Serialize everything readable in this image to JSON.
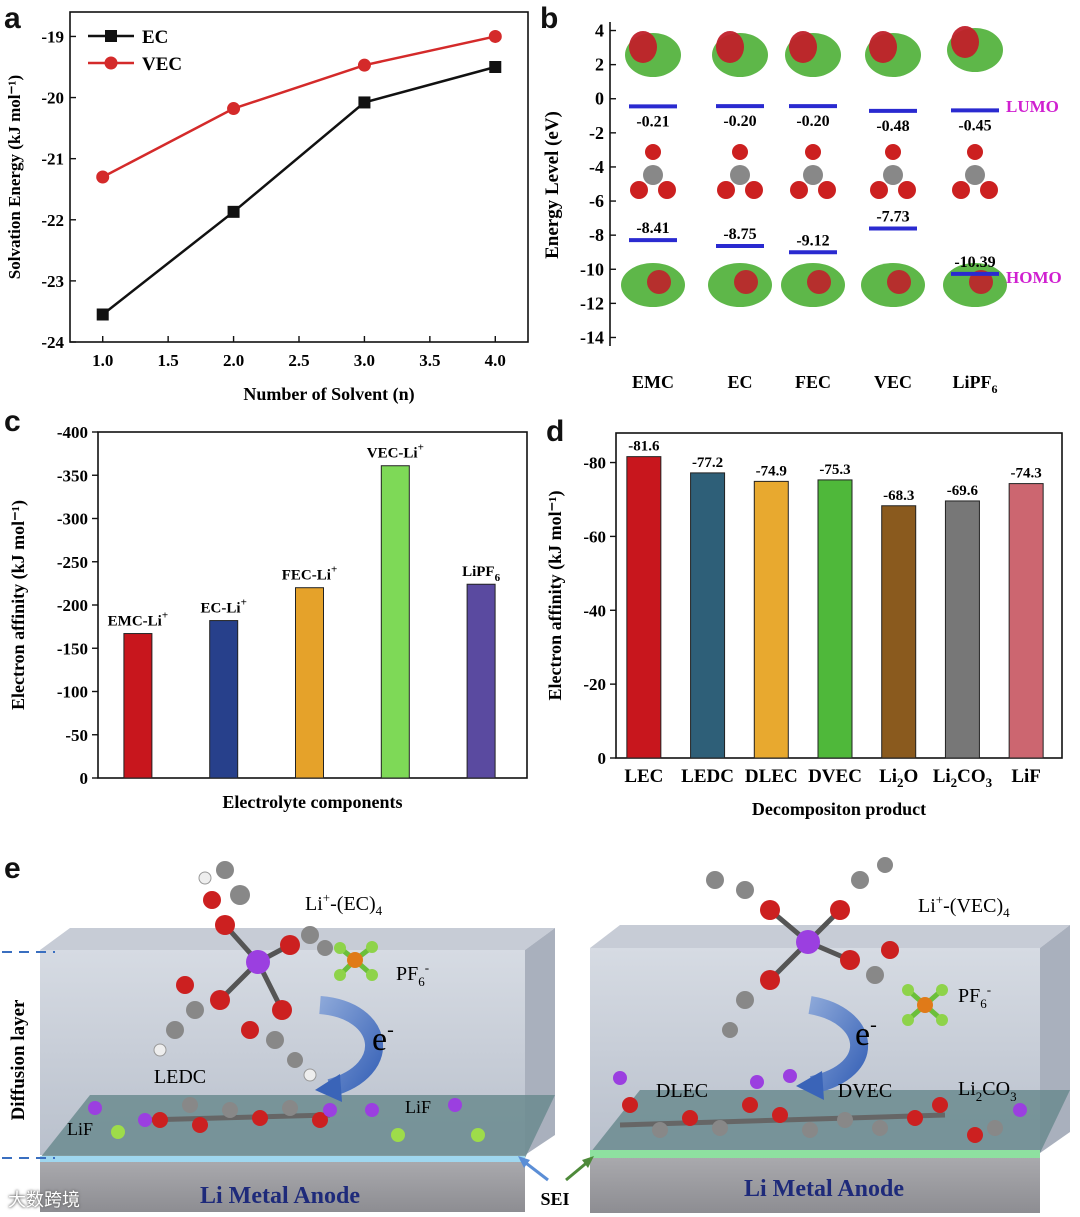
{
  "panels": {
    "a": "a",
    "b": "b",
    "c": "c",
    "d": "d",
    "e": "e"
  },
  "chart_data": [
    {
      "id": "a",
      "type": "line",
      "title": "",
      "xlabel": "Number of Solvent (n)",
      "ylabel": "Solvation Energy (kJ mol⁻¹)",
      "xlim": [
        0.75,
        4.25
      ],
      "ylim": [
        -24,
        -18.6
      ],
      "xticks": [
        "1.0",
        "1.5",
        "2.0",
        "2.5",
        "3.0",
        "3.5",
        "4.0"
      ],
      "yticks": [
        "-19",
        "-20",
        "-21",
        "-22",
        "-23",
        "-24"
      ],
      "x": [
        1.0,
        2.0,
        3.0,
        4.0
      ],
      "series": [
        {
          "name": "EC",
          "color": "#111111",
          "marker": "square",
          "values": [
            -23.55,
            -21.87,
            -20.08,
            -19.5
          ]
        },
        {
          "name": "VEC",
          "color": "#d42a2a",
          "marker": "circle",
          "values": [
            -21.3,
            -20.18,
            -19.47,
            -19.0
          ]
        }
      ],
      "legend": "top-left"
    },
    {
      "id": "b",
      "type": "scatter",
      "title": "",
      "ylabel": "Energy Level (eV)",
      "ylim": [
        -14.5,
        4.5
      ],
      "yticks": [
        "4",
        "2",
        "0",
        "-2",
        "-4",
        "-6",
        "-8",
        "-10",
        "-12",
        "-14"
      ],
      "categories": [
        "EMC",
        "EC",
        "FEC",
        "VEC",
        "LiPF6"
      ],
      "category_labels": [
        "EMC",
        "EC",
        "FEC",
        "VEC",
        "LiPF"
      ],
      "lumo": [
        -0.21,
        -0.2,
        -0.2,
        -0.48,
        -0.45
      ],
      "homo": [
        -8.41,
        -8.75,
        -9.12,
        -7.73,
        -10.39
      ],
      "lumo_labels": [
        "-0.21",
        "-0.20",
        "-0.20",
        "-0.48",
        "-0.45"
      ],
      "homo_labels": [
        "-8.41",
        "-8.75",
        "-9.12",
        "-7.73",
        "-10.39"
      ],
      "annotations": [
        "LUMO",
        "HOMO"
      ],
      "level_color": "#2a2ad0",
      "annotation_color": "#d020d0"
    },
    {
      "id": "c",
      "type": "bar",
      "title": "",
      "xlabel": "Electrolyte components",
      "ylabel": "Electron affinity (kJ mol⁻¹)",
      "ylim": [
        0,
        -400
      ],
      "yticks": [
        "-400",
        "-350",
        "-300",
        "-250",
        "-200",
        "-150",
        "-100",
        "-50",
        "0"
      ],
      "categories": [
        "EMC-Li+",
        "EC-Li+",
        "FEC-Li+",
        "VEC-Li+",
        "LiPF6"
      ],
      "bar_labels": [
        "EMC-Li",
        "EC-Li",
        "FEC-Li",
        "VEC-Li",
        "LiPF"
      ],
      "bar_label_scripts": [
        "+",
        "+",
        "+",
        "+",
        "6"
      ],
      "values": [
        -167,
        -182,
        -220,
        -361,
        -224
      ],
      "colors": [
        "#c8161d",
        "#27408b",
        "#e5a22a",
        "#7ed957",
        "#5a4aa0"
      ]
    },
    {
      "id": "d",
      "type": "bar",
      "title": "",
      "xlabel": "Decompositon product",
      "ylabel": "Electron affinity (kJ mol⁻¹)",
      "ylim": [
        0,
        -88
      ],
      "yticks": [
        "-80",
        "-60",
        "-40",
        "-20",
        "0"
      ],
      "categories": [
        "LEC",
        "LEDC",
        "DLEC",
        "DVEC",
        "Li2O",
        "Li2CO3",
        "LiF"
      ],
      "values": [
        -81.6,
        -77.2,
        -74.9,
        -75.3,
        -68.3,
        -69.6,
        -74.3
      ],
      "value_labels": [
        "-81.6",
        "-77.2",
        "-74.9",
        "-75.3",
        "-68.3",
        "-69.6",
        "-74.3"
      ],
      "colors": [
        "#c8161d",
        "#2e5f78",
        "#e8a92f",
        "#4fb83a",
        "#8a5a1e",
        "#777777",
        "#cc6670"
      ]
    }
  ],
  "panel_e": {
    "left": {
      "complex": "Li",
      "complex_suffix": "-(EC)",
      "complex_sup": "+",
      "complex_sub": "4",
      "anion": "PF",
      "anion_sub": "6",
      "anion_sup": "-",
      "electron": "e",
      "electron_sup": "-",
      "products": [
        "LEDC",
        "LiF",
        "LiF"
      ],
      "anode": "Li  Metal Anode"
    },
    "right": {
      "complex": "Li",
      "complex_suffix": "-(VEC)",
      "complex_sup": "+",
      "complex_sub": "4",
      "anion": "PF",
      "anion_sub": "6",
      "anion_sup": "-",
      "electron": "e",
      "electron_sup": "-",
      "products": [
        "DLEC",
        "DVEC"
      ],
      "li2co3": {
        "a": "Li",
        "b": "CO",
        "sub1": "2",
        "sub2": "3"
      },
      "anode": "Li  Metal Anode"
    },
    "diffusion_layer": "Diffusion layer",
    "sei": "SEI"
  },
  "watermark": "大数跨境",
  "colors": {
    "accent_red": "#d42a2a",
    "homo_lumo": "#d020d0",
    "level_blue": "#2a2ad0"
  }
}
